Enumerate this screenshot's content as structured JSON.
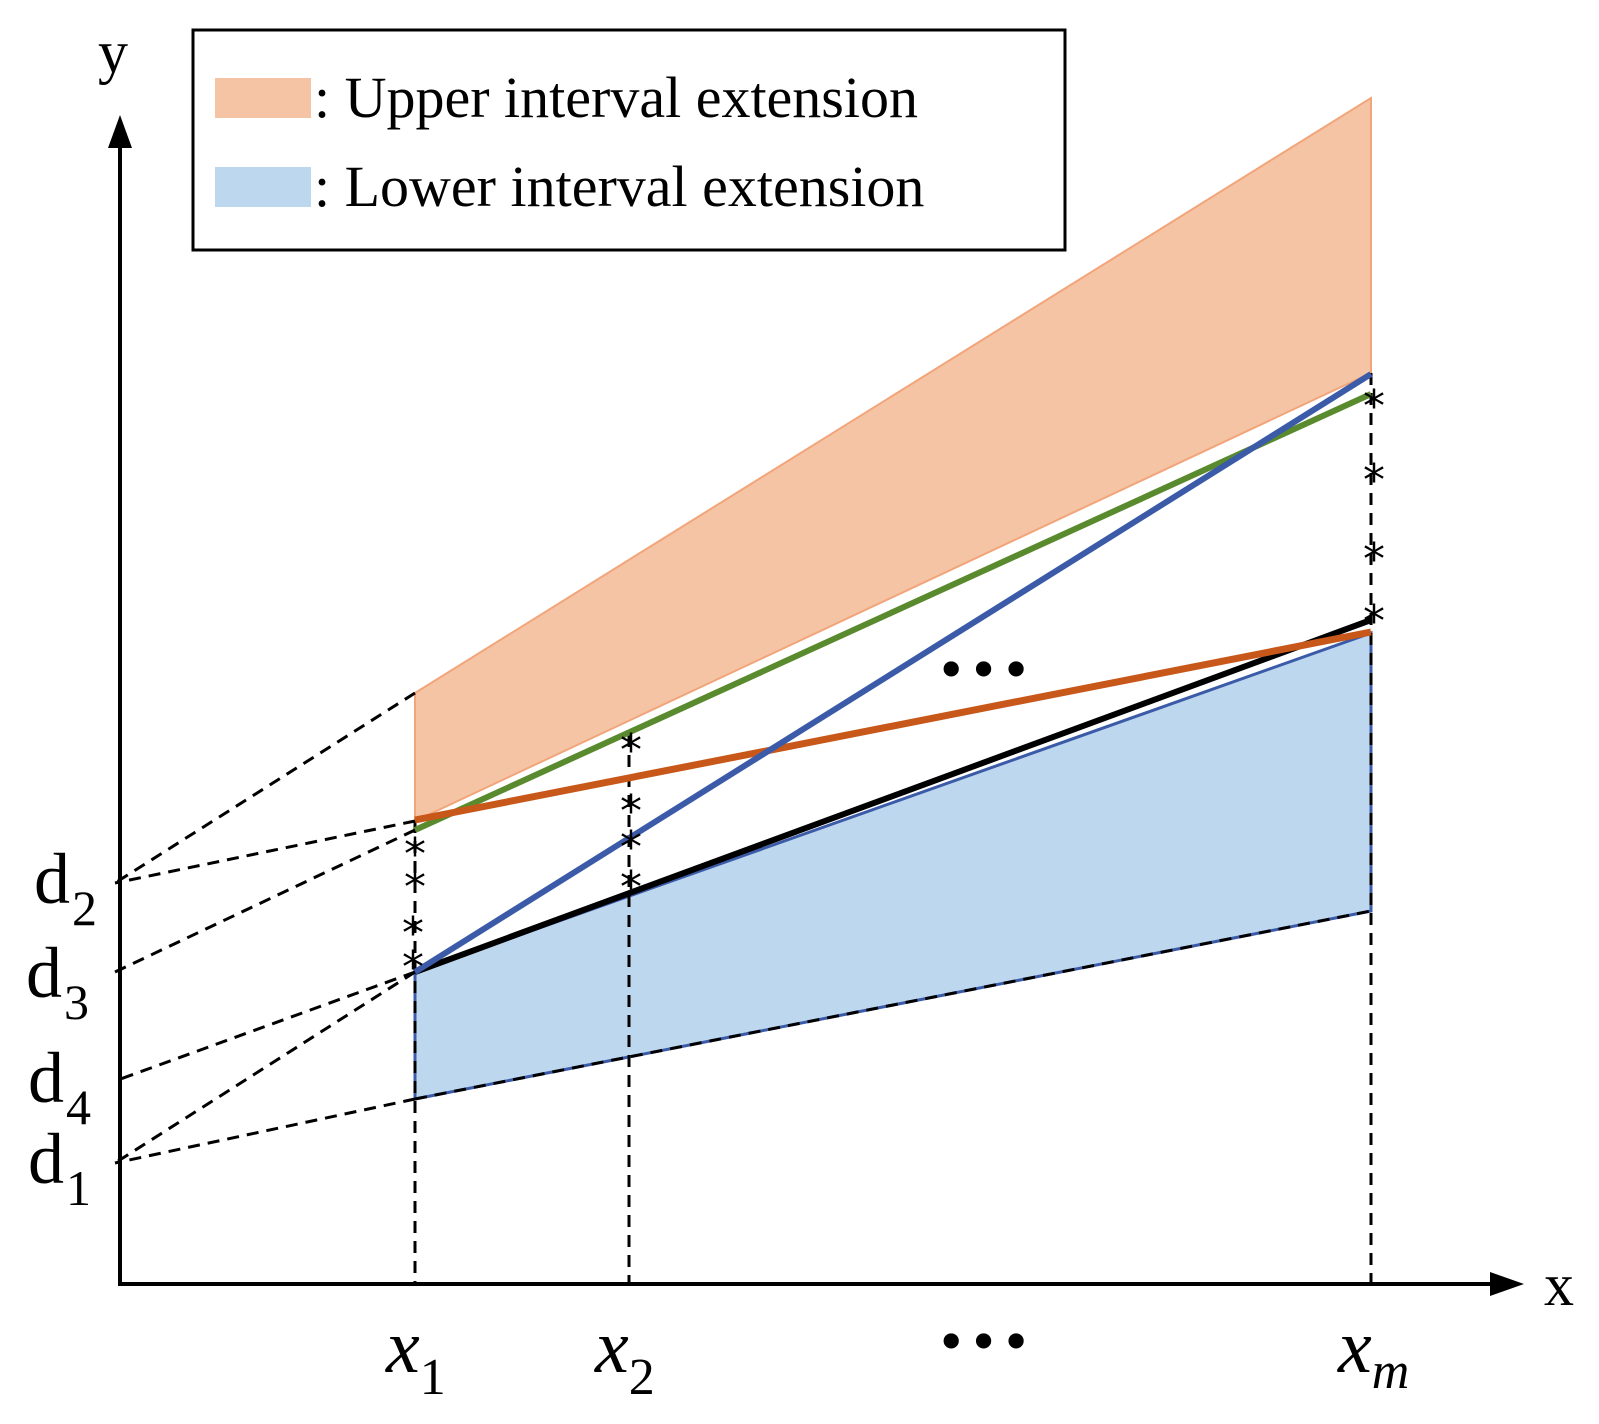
{
  "legend": {
    "upper_label": ": Upper interval extension",
    "lower_label": ": Lower interval extension"
  },
  "axes": {
    "x_label": "x",
    "y_label": "y"
  },
  "d_labels": [
    {
      "base": "d",
      "sub": "2"
    },
    {
      "base": "d",
      "sub": "3"
    },
    {
      "base": "d",
      "sub": "4"
    },
    {
      "base": "d",
      "sub": "1"
    }
  ],
  "x_ticks": [
    {
      "base": "x",
      "sub": "1"
    },
    {
      "base": "x",
      "sub": "2"
    },
    {
      "base": "x",
      "sub": "m"
    }
  ],
  "ellipsis_mid": "•••",
  "ellipsis_axis": "•••",
  "colors": {
    "upper_fill": "#F5C4A4",
    "upper_edge": "#F2A57A",
    "lower_fill": "#BDD7EE",
    "lower_edge": "#3B5BA8",
    "green_line": "#5A8A2E",
    "orange_line": "#C8581A",
    "blue_line": "#3B5BA8",
    "black_line": "#000000"
  }
}
